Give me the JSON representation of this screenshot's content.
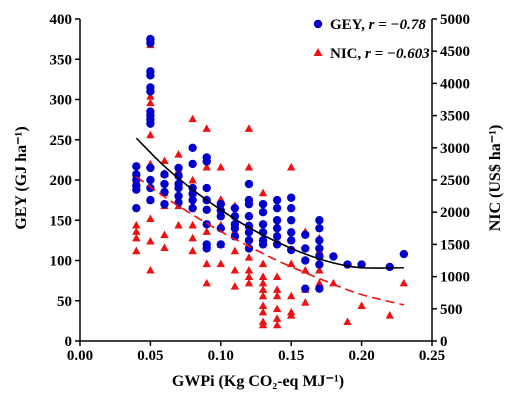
{
  "chart_data": {
    "type": "scatter",
    "xlabel": "GWPi (Kg CO₂-eq MJ⁻¹)",
    "ylabel_left": "GEY (GJ ha⁻¹)",
    "ylabel_right": "NIC (US$ ha⁻¹)",
    "xlim": [
      0,
      0.25
    ],
    "ylim_left": [
      0,
      400
    ],
    "ylim_right": [
      0,
      5000
    ],
    "x_ticks": [
      "0.00",
      "0.05",
      "0.10",
      "0.15",
      "0.20",
      "0.25"
    ],
    "y_left_ticks": [
      "0",
      "50",
      "100",
      "150",
      "200",
      "250",
      "300",
      "350",
      "400"
    ],
    "y_right_ticks": [
      "0",
      "500",
      "1000",
      "1500",
      "2000",
      "2500",
      "3000",
      "3500",
      "4000",
      "4500",
      "5000"
    ],
    "grid": false,
    "legend_position": "top-right",
    "series": [
      {
        "name": "GEY",
        "r_label": "r = −0.78",
        "axis": "left",
        "color": "#0000cc",
        "marker": "circle",
        "trend": "poly2-solid-black",
        "trend_points": [
          [
            0.04,
            252
          ],
          [
            0.06,
            217
          ],
          [
            0.08,
            188
          ],
          [
            0.1,
            163
          ],
          [
            0.12,
            141
          ],
          [
            0.14,
            123
          ],
          [
            0.16,
            108
          ],
          [
            0.18,
            97
          ],
          [
            0.2,
            91
          ],
          [
            0.23,
            91
          ]
        ],
        "points": [
          [
            0.04,
            217
          ],
          [
            0.04,
            207
          ],
          [
            0.04,
            200
          ],
          [
            0.04,
            193
          ],
          [
            0.04,
            188
          ],
          [
            0.04,
            165
          ],
          [
            0.05,
            375
          ],
          [
            0.05,
            370
          ],
          [
            0.05,
            335
          ],
          [
            0.05,
            330
          ],
          [
            0.05,
            315
          ],
          [
            0.05,
            310
          ],
          [
            0.05,
            285
          ],
          [
            0.05,
            280
          ],
          [
            0.05,
            275
          ],
          [
            0.05,
            270
          ],
          [
            0.05,
            215
          ],
          [
            0.05,
            200
          ],
          [
            0.05,
            190
          ],
          [
            0.05,
            175
          ],
          [
            0.06,
            207
          ],
          [
            0.06,
            195
          ],
          [
            0.06,
            185
          ],
          [
            0.06,
            170
          ],
          [
            0.07,
            215
          ],
          [
            0.07,
            205
          ],
          [
            0.07,
            195
          ],
          [
            0.07,
            190
          ],
          [
            0.07,
            180
          ],
          [
            0.07,
            172
          ],
          [
            0.08,
            240
          ],
          [
            0.08,
            220
          ],
          [
            0.08,
            190
          ],
          [
            0.08,
            183
          ],
          [
            0.08,
            175
          ],
          [
            0.08,
            165
          ],
          [
            0.09,
            228
          ],
          [
            0.09,
            223
          ],
          [
            0.09,
            190
          ],
          [
            0.09,
            175
          ],
          [
            0.09,
            163
          ],
          [
            0.09,
            145
          ],
          [
            0.09,
            120
          ],
          [
            0.09,
            115
          ],
          [
            0.1,
            170
          ],
          [
            0.1,
            162
          ],
          [
            0.1,
            155
          ],
          [
            0.1,
            140
          ],
          [
            0.1,
            120
          ],
          [
            0.11,
            165
          ],
          [
            0.11,
            155
          ],
          [
            0.11,
            145
          ],
          [
            0.11,
            140
          ],
          [
            0.11,
            130
          ],
          [
            0.12,
            195
          ],
          [
            0.12,
            175
          ],
          [
            0.12,
            170
          ],
          [
            0.12,
            155
          ],
          [
            0.12,
            143
          ],
          [
            0.12,
            135
          ],
          [
            0.12,
            125
          ],
          [
            0.12,
            115
          ],
          [
            0.13,
            170
          ],
          [
            0.13,
            160
          ],
          [
            0.13,
            145
          ],
          [
            0.13,
            135
          ],
          [
            0.13,
            125
          ],
          [
            0.13,
            120
          ],
          [
            0.14,
            175
          ],
          [
            0.14,
            165
          ],
          [
            0.14,
            150
          ],
          [
            0.14,
            140
          ],
          [
            0.14,
            130
          ],
          [
            0.14,
            120
          ],
          [
            0.15,
            178
          ],
          [
            0.15,
            165
          ],
          [
            0.15,
            150
          ],
          [
            0.15,
            135
          ],
          [
            0.15,
            125
          ],
          [
            0.15,
            113
          ],
          [
            0.16,
            132
          ],
          [
            0.16,
            115
          ],
          [
            0.16,
            100
          ],
          [
            0.16,
            65
          ],
          [
            0.17,
            150
          ],
          [
            0.17,
            140
          ],
          [
            0.17,
            125
          ],
          [
            0.17,
            115
          ],
          [
            0.17,
            105
          ],
          [
            0.17,
            95
          ],
          [
            0.17,
            65
          ],
          [
            0.18,
            105
          ],
          [
            0.19,
            95
          ],
          [
            0.2,
            95
          ],
          [
            0.22,
            92
          ],
          [
            0.23,
            108
          ]
        ]
      },
      {
        "name": "NIC",
        "r_label": "r = −0.603",
        "axis": "right",
        "color": "#ee1111",
        "marker": "triangle",
        "trend": "poly2-dashed-red",
        "trend_points": [
          [
            0.04,
            2550
          ],
          [
            0.06,
            2240
          ],
          [
            0.08,
            1960
          ],
          [
            0.1,
            1700
          ],
          [
            0.12,
            1470
          ],
          [
            0.14,
            1250
          ],
          [
            0.16,
            1060
          ],
          [
            0.18,
            880
          ],
          [
            0.2,
            720
          ],
          [
            0.23,
            560
          ]
        ],
        "points": [
          [
            0.04,
            2600
          ],
          [
            0.04,
            2450
          ],
          [
            0.04,
            1800
          ],
          [
            0.04,
            1700
          ],
          [
            0.04,
            1600
          ],
          [
            0.04,
            1400
          ],
          [
            0.05,
            4700
          ],
          [
            0.05,
            4600
          ],
          [
            0.05,
            3800
          ],
          [
            0.05,
            3700
          ],
          [
            0.05,
            3500
          ],
          [
            0.05,
            3200
          ],
          [
            0.05,
            2750
          ],
          [
            0.05,
            2200
          ],
          [
            0.05,
            1900
          ],
          [
            0.05,
            1550
          ],
          [
            0.05,
            1100
          ],
          [
            0.06,
            2800
          ],
          [
            0.06,
            2600
          ],
          [
            0.06,
            2300
          ],
          [
            0.06,
            2100
          ],
          [
            0.06,
            1650
          ],
          [
            0.06,
            1450
          ],
          [
            0.07,
            2900
          ],
          [
            0.07,
            2650
          ],
          [
            0.07,
            2400
          ],
          [
            0.07,
            2100
          ],
          [
            0.07,
            1800
          ],
          [
            0.08,
            3450
          ],
          [
            0.08,
            2500
          ],
          [
            0.08,
            2300
          ],
          [
            0.08,
            2100
          ],
          [
            0.08,
            1800
          ],
          [
            0.08,
            1600
          ],
          [
            0.08,
            1400
          ],
          [
            0.09,
            3300
          ],
          [
            0.09,
            2700
          ],
          [
            0.09,
            2200
          ],
          [
            0.09,
            1700
          ],
          [
            0.09,
            1500
          ],
          [
            0.09,
            1200
          ],
          [
            0.09,
            900
          ],
          [
            0.1,
            2700
          ],
          [
            0.1,
            2200
          ],
          [
            0.1,
            1800
          ],
          [
            0.1,
            1500
          ],
          [
            0.1,
            1200
          ],
          [
            0.11,
            2100
          ],
          [
            0.11,
            1700
          ],
          [
            0.11,
            1400
          ],
          [
            0.11,
            1100
          ],
          [
            0.11,
            850
          ],
          [
            0.12,
            3300
          ],
          [
            0.12,
            2700
          ],
          [
            0.12,
            1800
          ],
          [
            0.12,
            1300
          ],
          [
            0.12,
            1100
          ],
          [
            0.12,
            1000
          ],
          [
            0.12,
            900
          ],
          [
            0.13,
            2300
          ],
          [
            0.13,
            1200
          ],
          [
            0.13,
            1000
          ],
          [
            0.13,
            900
          ],
          [
            0.13,
            800
          ],
          [
            0.13,
            700
          ],
          [
            0.13,
            550
          ],
          [
            0.13,
            450
          ],
          [
            0.13,
            300
          ],
          [
            0.13,
            250
          ],
          [
            0.14,
            1800
          ],
          [
            0.14,
            1000
          ],
          [
            0.14,
            800
          ],
          [
            0.14,
            700
          ],
          [
            0.14,
            500
          ],
          [
            0.14,
            350
          ],
          [
            0.14,
            250
          ],
          [
            0.15,
            2700
          ],
          [
            0.15,
            1200
          ],
          [
            0.15,
            700
          ],
          [
            0.15,
            450
          ],
          [
            0.15,
            400
          ],
          [
            0.16,
            1700
          ],
          [
            0.16,
            1100
          ],
          [
            0.16,
            800
          ],
          [
            0.16,
            600
          ],
          [
            0.17,
            1600
          ],
          [
            0.17,
            1400
          ],
          [
            0.17,
            1100
          ],
          [
            0.17,
            900
          ],
          [
            0.17,
            850
          ],
          [
            0.18,
            900
          ],
          [
            0.19,
            300
          ],
          [
            0.2,
            550
          ],
          [
            0.22,
            400
          ],
          [
            0.23,
            900
          ]
        ]
      }
    ]
  }
}
